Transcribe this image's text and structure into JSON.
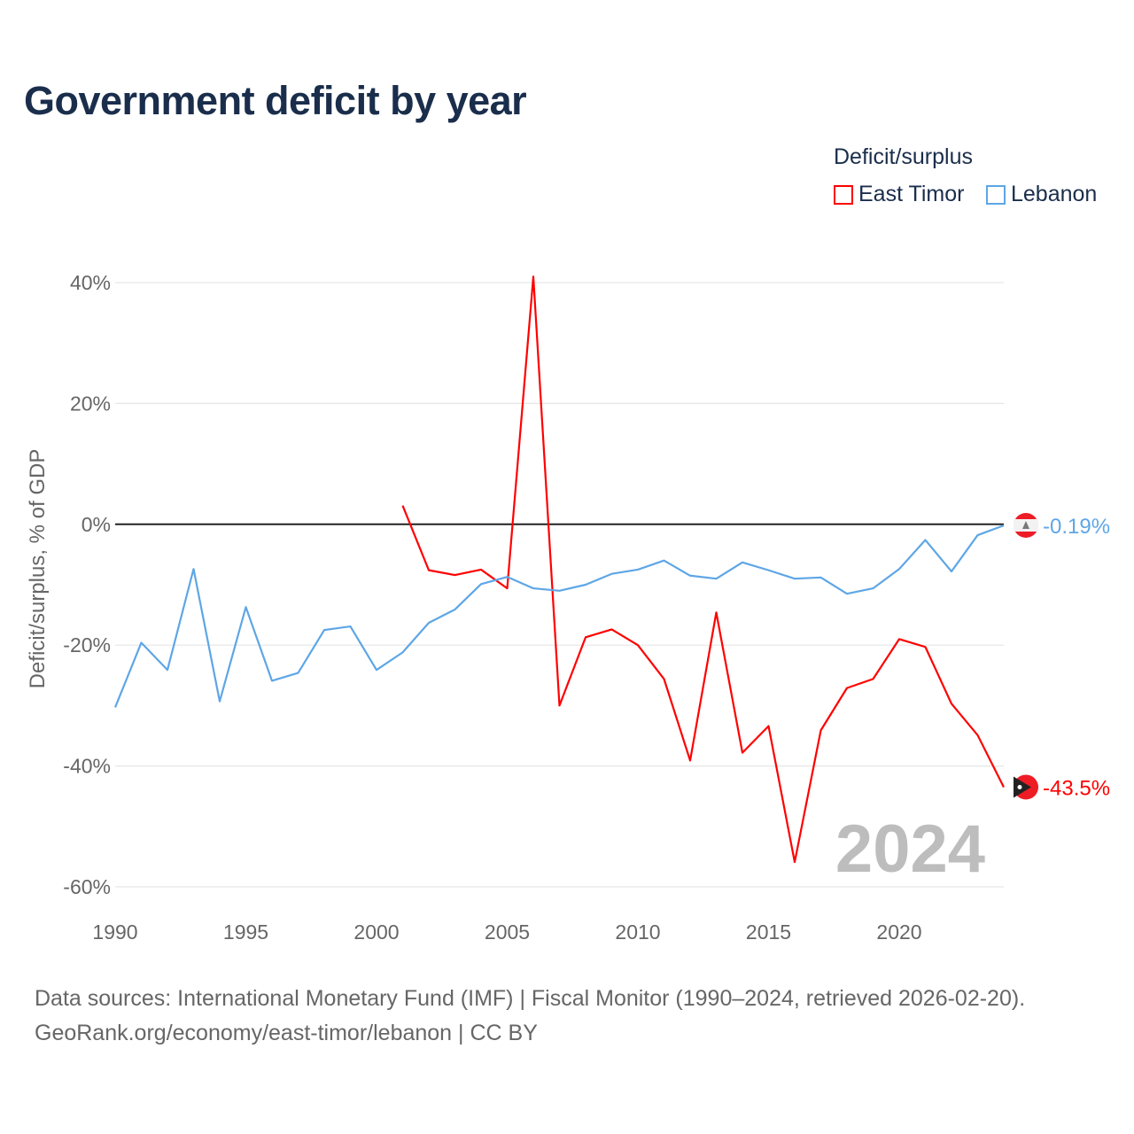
{
  "title": "Government deficit by year",
  "legend": {
    "title": "Deficit/surplus",
    "items": [
      {
        "name": "East Timor",
        "color": "#ff0000"
      },
      {
        "name": "Lebanon",
        "color": "#5ea6e6"
      }
    ]
  },
  "source": {
    "line1": "Data sources: International Monetary Fund (IMF) | Fiscal Monitor (1990–2024, retrieved 2026-02-20).",
    "line2": "GeoRank.org/economy/east-timor/lebanon | CC BY"
  },
  "chart_data": {
    "type": "line",
    "title": "Government deficit by year",
    "xlabel": "",
    "ylabel": "Deficit/surplus, % of GDP",
    "xlim": [
      1990,
      2024
    ],
    "ylim": [
      -60,
      40
    ],
    "xticks": [
      1990,
      1995,
      2000,
      2005,
      2010,
      2015,
      2020
    ],
    "yticks": [
      40,
      20,
      0,
      -20,
      -40,
      -60
    ],
    "ytick_labels": [
      "40%",
      "20%",
      "0%",
      "-20%",
      "-40%",
      "-60%"
    ],
    "xtick_labels": [
      "1990",
      "1995",
      "2000",
      "2005",
      "2010",
      "2015",
      "2020"
    ],
    "year_watermark": "2024",
    "grid": true,
    "series": [
      {
        "name": "East Timor",
        "color": "#ff0000",
        "end_label": "-43.5%",
        "x": [
          2001,
          2002,
          2003,
          2004,
          2005,
          2006,
          2007,
          2008,
          2009,
          2010,
          2011,
          2012,
          2013,
          2014,
          2015,
          2016,
          2017,
          2018,
          2019,
          2020,
          2021,
          2022,
          2023,
          2024
        ],
        "values": [
          3.1,
          -7.6,
          -8.4,
          -7.5,
          -10.6,
          41.0,
          -30.0,
          -18.7,
          -17.4,
          -20.0,
          -25.6,
          -39.1,
          -14.6,
          -37.8,
          -33.4,
          -55.9,
          -34.1,
          -27.1,
          -25.6,
          -19.0,
          -20.3,
          -29.7,
          -34.9,
          -43.5
        ]
      },
      {
        "name": "Lebanon",
        "color": "#5ea6e6",
        "end_label": "-0.19%",
        "x": [
          1990,
          1991,
          1992,
          1993,
          1994,
          1995,
          1996,
          1997,
          1998,
          1999,
          2000,
          2001,
          2002,
          2003,
          2004,
          2005,
          2006,
          2007,
          2008,
          2009,
          2010,
          2011,
          2012,
          2013,
          2014,
          2015,
          2016,
          2017,
          2018,
          2019,
          2020,
          2021,
          2022,
          2023,
          2024
        ],
        "values": [
          -30.3,
          -19.6,
          -24.1,
          -7.4,
          -29.3,
          -13.7,
          -25.9,
          -24.6,
          -17.5,
          -16.9,
          -24.1,
          -21.2,
          -16.3,
          -14.1,
          -9.9,
          -8.7,
          -10.6,
          -11.0,
          -10.0,
          -8.2,
          -7.5,
          -6.0,
          -8.5,
          -9.0,
          -6.3,
          -7.6,
          -9.0,
          -8.8,
          -11.5,
          -10.6,
          -7.4,
          -2.6,
          -7.8,
          -1.8,
          -0.19
        ]
      }
    ]
  }
}
